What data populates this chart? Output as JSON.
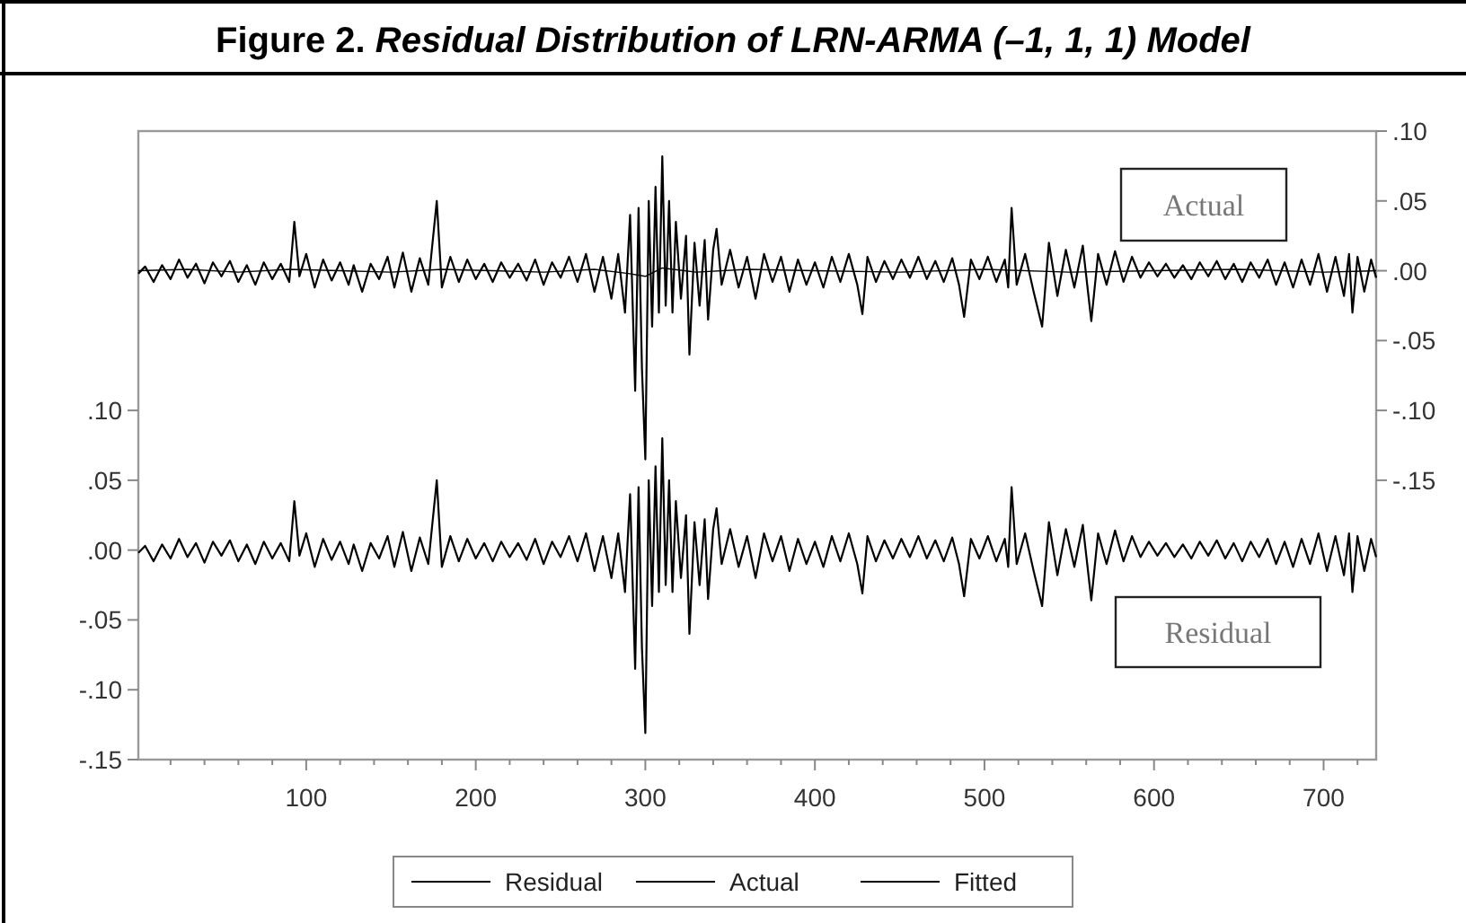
{
  "chart_data": {
    "type": "line",
    "title": "Figure 2. Residual Distribution of LRN-ARMA (–1, 1, 1) Model",
    "annotations": [
      "Actual",
      "Residual"
    ],
    "legend": "bottom",
    "grid": false,
    "marker": "none",
    "line_style": "solid",
    "xlim": [
      1,
      731
    ],
    "xticks": [
      {
        "value": 20,
        "label": null
      },
      {
        "value": 40,
        "label": null
      },
      {
        "value": 60,
        "label": null
      },
      {
        "value": 80,
        "label": null
      },
      100,
      {
        "value": 120,
        "label": null
      },
      {
        "value": 140,
        "label": null
      },
      {
        "value": 160,
        "label": null
      },
      {
        "value": 180,
        "label": null
      },
      200,
      {
        "value": 220,
        "label": null
      },
      {
        "value": 240,
        "label": null
      },
      {
        "value": 260,
        "label": null
      },
      {
        "value": 280,
        "label": null
      },
      300,
      {
        "value": 320,
        "label": null
      },
      {
        "value": 340,
        "label": null
      },
      {
        "value": 360,
        "label": null
      },
      {
        "value": 380,
        "label": null
      },
      400,
      {
        "value": 420,
        "label": null
      },
      {
        "value": 440,
        "label": null
      },
      {
        "value": 460,
        "label": null
      },
      {
        "value": 480,
        "label": null
      },
      500,
      {
        "value": 520,
        "label": null
      },
      {
        "value": 540,
        "label": null
      },
      {
        "value": 560,
        "label": null
      },
      {
        "value": 580,
        "label": null
      },
      600,
      {
        "value": 620,
        "label": null
      },
      {
        "value": 640,
        "label": null
      },
      {
        "value": 660,
        "label": null
      },
      {
        "value": 680,
        "label": null
      },
      700,
      {
        "value": 720,
        "label": null
      }
    ],
    "ylim": [
      -0.15,
      0.3
    ],
    "yticks": [
      {
        "value": -0.15,
        "label": "-.15"
      },
      {
        "value": -0.1,
        "label": "-.10"
      },
      {
        "value": -0.05,
        "label": "-.05"
      },
      {
        "value": 0,
        "label": ".00"
      },
      {
        "value": 0.05,
        "label": ".05"
      },
      {
        "value": 0.1,
        "label": ".10"
      }
    ],
    "y2lim": [
      -0.35,
      0.1
    ],
    "y2ticks": [
      {
        "value": -0.15,
        "label": "-.15"
      },
      {
        "value": -0.1,
        "label": "-.10"
      },
      {
        "value": -0.05,
        "label": "-.05"
      },
      {
        "value": 0,
        "label": ".00"
      },
      {
        "value": 0.05,
        "label": ".05"
      },
      {
        "value": 0.1,
        "label": ".10"
      }
    ],
    "series": [
      {
        "name": "Residual",
        "color": "#000000",
        "x": [
          1,
          5,
          10,
          15,
          20,
          25,
          30,
          35,
          40,
          45,
          50,
          55,
          60,
          65,
          70,
          75,
          80,
          85,
          90,
          93,
          96,
          100,
          105,
          110,
          115,
          120,
          125,
          128,
          133,
          138,
          143,
          148,
          152,
          157,
          162,
          167,
          172,
          177,
          180,
          185,
          190,
          195,
          200,
          205,
          210,
          215,
          220,
          225,
          230,
          235,
          240,
          245,
          250,
          255,
          260,
          265,
          270,
          275,
          280,
          284,
          288,
          291,
          294,
          296,
          298,
          300,
          302,
          304,
          306,
          308,
          310,
          312,
          314,
          316,
          318,
          321,
          324,
          326,
          329,
          332,
          335,
          337,
          340,
          342,
          345,
          350,
          355,
          360,
          365,
          370,
          375,
          380,
          385,
          390,
          395,
          400,
          405,
          410,
          415,
          420,
          425,
          428,
          431,
          436,
          441,
          446,
          451,
          456,
          461,
          466,
          471,
          476,
          481,
          485,
          488,
          492,
          497,
          502,
          507,
          512,
          514,
          516,
          519,
          524,
          529,
          534,
          538,
          543,
          548,
          553,
          558,
          563,
          567,
          572,
          577,
          582,
          587,
          592,
          597,
          602,
          607,
          612,
          617,
          622,
          627,
          632,
          637,
          642,
          647,
          652,
          657,
          662,
          667,
          672,
          677,
          682,
          687,
          692,
          697,
          702,
          707,
          712,
          715,
          717,
          720,
          724,
          728,
          731
        ],
        "values": [
          -0.002,
          0.003,
          -0.008,
          0.004,
          -0.006,
          0.008,
          -0.005,
          0.005,
          -0.009,
          0.006,
          -0.004,
          0.007,
          -0.008,
          0.004,
          -0.01,
          0.006,
          -0.006,
          0.005,
          -0.008,
          0.035,
          -0.004,
          0.012,
          -0.012,
          0.008,
          -0.007,
          0.006,
          -0.01,
          0.004,
          -0.015,
          0.005,
          -0.006,
          0.01,
          -0.012,
          0.013,
          -0.015,
          0.009,
          -0.01,
          0.05,
          -0.012,
          0.01,
          -0.008,
          0.008,
          -0.006,
          0.005,
          -0.008,
          0.006,
          -0.005,
          0.005,
          -0.007,
          0.008,
          -0.01,
          0.006,
          -0.005,
          0.01,
          -0.008,
          0.012,
          -0.015,
          0.01,
          -0.02,
          0.012,
          -0.03,
          0.04,
          -0.085,
          0.045,
          -0.07,
          -0.131,
          0.05,
          -0.04,
          0.06,
          -0.03,
          0.08,
          -0.025,
          0.05,
          -0.03,
          0.035,
          -0.02,
          0.025,
          -0.06,
          0.02,
          -0.025,
          0.022,
          -0.035,
          0.015,
          0.03,
          -0.01,
          0.015,
          -0.012,
          0.01,
          -0.02,
          0.012,
          -0.008,
          0.01,
          -0.015,
          0.008,
          -0.01,
          0.006,
          -0.012,
          0.01,
          -0.008,
          0.012,
          -0.01,
          -0.031,
          0.01,
          -0.008,
          0.007,
          -0.006,
          0.008,
          -0.005,
          0.01,
          -0.006,
          0.007,
          -0.008,
          0.009,
          -0.01,
          -0.033,
          0.008,
          -0.006,
          0.01,
          -0.008,
          0.008,
          -0.012,
          0.045,
          -0.01,
          0.012,
          -0.015,
          -0.04,
          0.02,
          -0.018,
          0.015,
          -0.012,
          0.018,
          -0.036,
          0.012,
          -0.01,
          0.014,
          -0.008,
          0.01,
          -0.005,
          0.006,
          -0.004,
          0.005,
          -0.005,
          0.004,
          -0.006,
          0.006,
          -0.004,
          0.007,
          -0.006,
          0.005,
          -0.008,
          0.006,
          -0.005,
          0.008,
          -0.01,
          0.006,
          -0.012,
          0.008,
          -0.01,
          0.012,
          -0.015,
          0.01,
          -0.018,
          0.012,
          -0.03,
          0.01,
          -0.015,
          0.008,
          -0.005
        ]
      },
      {
        "name": "Actual",
        "color": "#000000",
        "axis": "y2",
        "x": [
          1,
          5,
          10,
          15,
          20,
          25,
          30,
          35,
          40,
          45,
          50,
          55,
          60,
          65,
          70,
          75,
          80,
          85,
          90,
          93,
          96,
          100,
          105,
          110,
          115,
          120,
          125,
          128,
          133,
          138,
          143,
          148,
          152,
          157,
          162,
          167,
          172,
          177,
          180,
          185,
          190,
          195,
          200,
          205,
          210,
          215,
          220,
          225,
          230,
          235,
          240,
          245,
          250,
          255,
          260,
          265,
          270,
          275,
          280,
          284,
          288,
          291,
          294,
          296,
          298,
          300,
          302,
          304,
          306,
          308,
          310,
          312,
          314,
          316,
          318,
          321,
          324,
          326,
          329,
          332,
          335,
          337,
          340,
          342,
          345,
          350,
          355,
          360,
          365,
          370,
          375,
          380,
          385,
          390,
          395,
          400,
          405,
          410,
          415,
          420,
          425,
          428,
          431,
          436,
          441,
          446,
          451,
          456,
          461,
          466,
          471,
          476,
          481,
          485,
          488,
          492,
          497,
          502,
          507,
          512,
          514,
          516,
          519,
          524,
          529,
          534,
          538,
          543,
          548,
          553,
          558,
          563,
          567,
          572,
          577,
          582,
          587,
          592,
          597,
          602,
          607,
          612,
          617,
          622,
          627,
          632,
          637,
          642,
          647,
          652,
          657,
          662,
          667,
          672,
          677,
          682,
          687,
          692,
          697,
          702,
          707,
          712,
          715,
          717,
          720,
          724,
          728,
          731
        ],
        "values": [
          -0.002,
          0.003,
          -0.008,
          0.004,
          -0.006,
          0.008,
          -0.005,
          0.005,
          -0.009,
          0.006,
          -0.004,
          0.007,
          -0.008,
          0.004,
          -0.01,
          0.006,
          -0.006,
          0.005,
          -0.008,
          0.035,
          -0.004,
          0.012,
          -0.012,
          0.008,
          -0.007,
          0.006,
          -0.01,
          0.004,
          -0.015,
          0.005,
          -0.006,
          0.01,
          -0.012,
          0.013,
          -0.015,
          0.009,
          -0.01,
          0.05,
          -0.012,
          0.01,
          -0.008,
          0.008,
          -0.006,
          0.005,
          -0.008,
          0.006,
          -0.005,
          0.005,
          -0.007,
          0.008,
          -0.01,
          0.006,
          -0.005,
          0.01,
          -0.008,
          0.012,
          -0.015,
          0.01,
          -0.02,
          0.012,
          -0.03,
          0.04,
          -0.086,
          0.045,
          -0.07,
          -0.135,
          0.05,
          -0.04,
          0.06,
          -0.03,
          0.082,
          -0.025,
          0.05,
          -0.03,
          0.035,
          -0.02,
          0.025,
          -0.06,
          0.02,
          -0.025,
          0.022,
          -0.035,
          0.015,
          0.03,
          -0.01,
          0.015,
          -0.012,
          0.01,
          -0.02,
          0.012,
          -0.008,
          0.01,
          -0.015,
          0.008,
          -0.01,
          0.006,
          -0.012,
          0.01,
          -0.008,
          0.012,
          -0.01,
          -0.031,
          0.01,
          -0.008,
          0.007,
          -0.006,
          0.008,
          -0.005,
          0.01,
          -0.006,
          0.007,
          -0.008,
          0.009,
          -0.01,
          -0.033,
          0.008,
          -0.006,
          0.01,
          -0.008,
          0.008,
          -0.012,
          0.045,
          -0.01,
          0.012,
          -0.015,
          -0.04,
          0.02,
          -0.018,
          0.015,
          -0.012,
          0.018,
          -0.036,
          0.012,
          -0.01,
          0.014,
          -0.008,
          0.01,
          -0.005,
          0.006,
          -0.004,
          0.005,
          -0.005,
          0.004,
          -0.006,
          0.006,
          -0.004,
          0.007,
          -0.006,
          0.005,
          -0.008,
          0.006,
          -0.005,
          0.008,
          -0.01,
          0.006,
          -0.012,
          0.008,
          -0.01,
          0.012,
          -0.015,
          0.01,
          -0.018,
          0.012,
          -0.03,
          0.01,
          -0.015,
          0.008,
          -0.005
        ]
      },
      {
        "name": "Fitted",
        "color": "#000000",
        "axis": "y2",
        "x": [
          1,
          30,
          60,
          90,
          120,
          150,
          180,
          210,
          240,
          270,
          290,
          300,
          310,
          330,
          360,
          400,
          450,
          500,
          550,
          600,
          650,
          700,
          731
        ],
        "values": [
          0.0,
          0.001,
          -0.001,
          0.001,
          0.0,
          -0.001,
          0.001,
          0.0,
          -0.001,
          0.001,
          -0.002,
          -0.004,
          0.002,
          -0.001,
          0.001,
          0.0,
          -0.001,
          0.001,
          -0.001,
          0.0,
          0.001,
          -0.001,
          0.0
        ]
      }
    ]
  }
}
